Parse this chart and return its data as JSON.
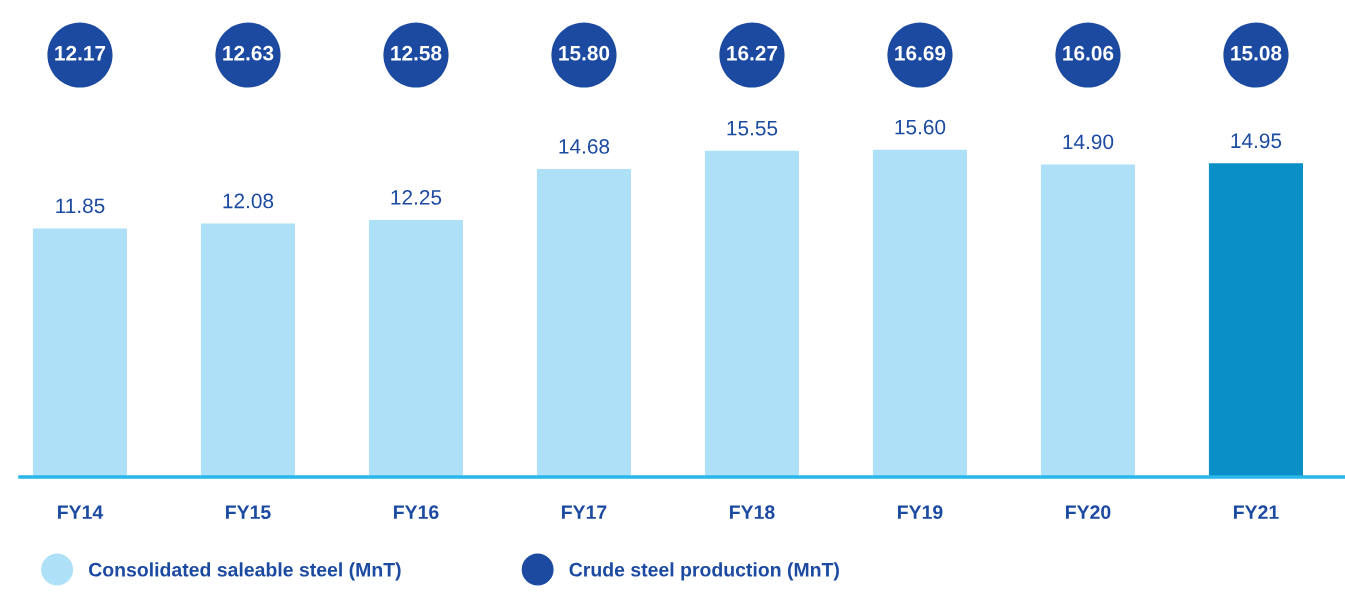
{
  "chart_data": [
    {
      "type": "other",
      "legend": "bottom",
      "series": [
        {
          "name": "Crude steel production (MnT)",
          "color": "#1b4aa0",
          "values": [
            12.17,
            12.63,
            12.58,
            15.8,
            16.27,
            16.69,
            16.06,
            15.08
          ],
          "value_labels": [
            "12.17",
            "12.63",
            "12.58",
            "15.80",
            "16.27",
            "16.69",
            "16.06",
            "15.08"
          ]
        }
      ]
    },
    {
      "type": "bar",
      "categories": [
        "FY14",
        "FY15",
        "FY16",
        "FY17",
        "FY18",
        "FY19",
        "FY20",
        "FY21"
      ],
      "tick_labels": "x",
      "legend": "bottom",
      "series": [
        {
          "name": "Consolidated saleable steel (MnT)",
          "color": "#aee1f7",
          "colors": [
            "#aee1f7",
            "#aee1f7",
            "#aee1f7",
            "#aee1f7",
            "#aee1f7",
            "#aee1f7",
            "#aee1f7",
            "#0a8fc7"
          ],
          "values": [
            11.85,
            12.08,
            12.25,
            14.68,
            15.55,
            15.6,
            14.9,
            14.95
          ],
          "value_labels": [
            "11.85",
            "12.08",
            "12.25",
            "14.68",
            "15.55",
            "15.60",
            "14.90",
            "14.95"
          ]
        }
      ]
    }
  ]
}
